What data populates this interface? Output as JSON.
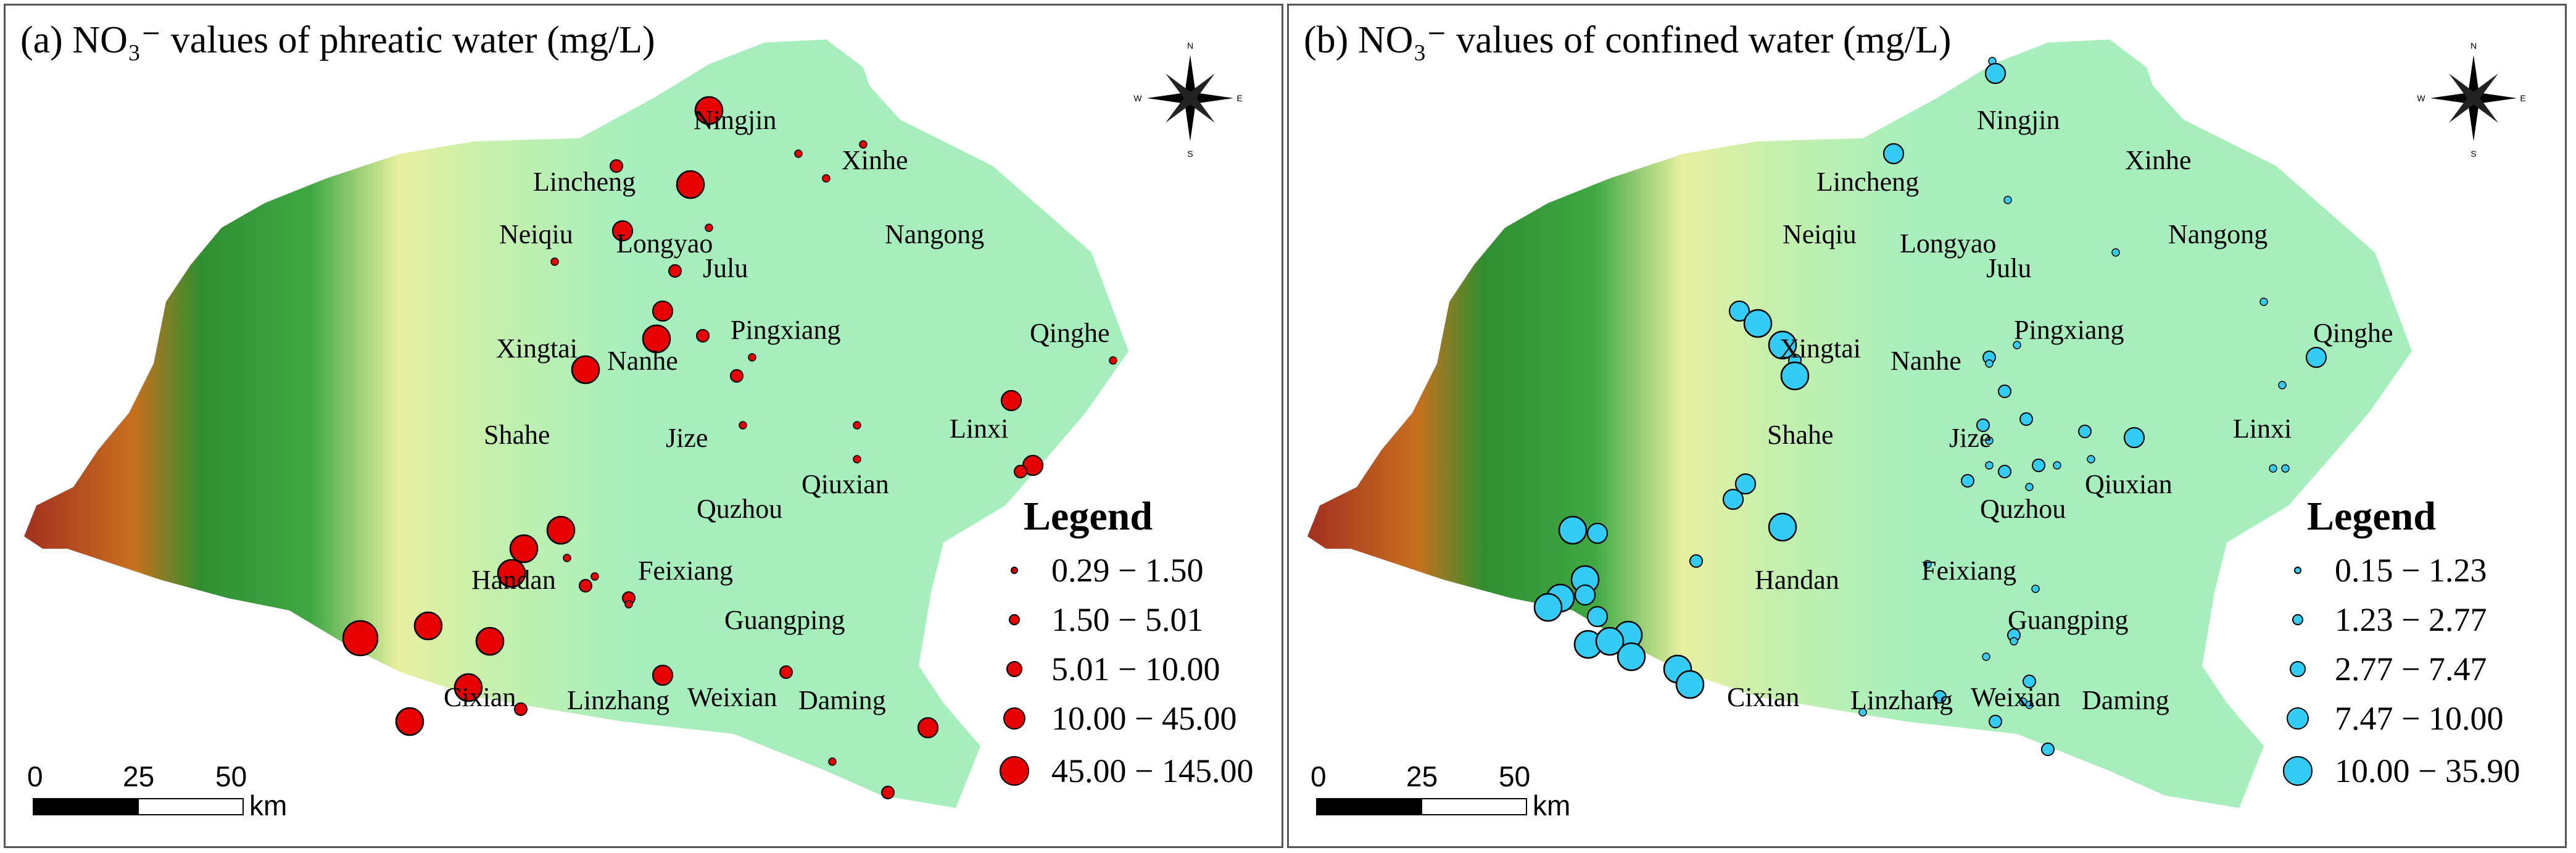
{
  "panels": [
    {
      "id": "a",
      "title": "(a) NO₃⁻ values of phreatic water (mg/L)",
      "marker_color": "#e60000",
      "legend_title": "Legend",
      "legend": [
        "0.29 − 1.50",
        "1.50 − 5.01",
        "5.01 − 10.00",
        "10.00 − 45.00",
        "45.00 − 145.00"
      ],
      "town_labels": [
        "Ningjin",
        "Xinhe",
        "Lincheng",
        "Neiqiu",
        "Longyao",
        "Nangong",
        "Julu",
        "Pingxiang",
        "Xingtai",
        "Nanhe",
        "Qinghe",
        "Shahe",
        "Jize",
        "Linxi",
        "Qiuxian",
        "Quzhou",
        "Handan",
        "Feixiang",
        "Guangping",
        "Cixian",
        "Linzhang",
        "Weixian",
        "Daming"
      ]
    },
    {
      "id": "b",
      "title": "(b) NO₃⁻ values of confined water (mg/L)",
      "marker_color": "#33ccf5",
      "legend_title": "Legend",
      "legend": [
        "0.15 − 1.23",
        "1.23 − 2.77",
        "2.77 − 7.47",
        "7.47 − 10.00",
        "10.00 − 35.90"
      ],
      "town_labels": [
        "Ningjin",
        "Xinhe",
        "Lincheng",
        "Neiqiu",
        "Longyao",
        "Nangong",
        "Julu",
        "Pingxiang",
        "Xingtai",
        "Nanhe",
        "Qinghe",
        "Shahe",
        "Jize",
        "Linxi",
        "Qiuxian",
        "Quzhou",
        "Handan",
        "Feixiang",
        "Guangping",
        "Cixian",
        "Linzhang",
        "Weixian",
        "Daming"
      ]
    }
  ],
  "scale_bar": {
    "ticks": [
      "0",
      "25",
      "50"
    ],
    "unit": "km"
  },
  "compass": {
    "n": "N",
    "s": "S",
    "e": "E",
    "w": "W"
  },
  "colors": {
    "plain": "#a6efbc",
    "mountain_high": "#a52a2a",
    "mountain_mid": "#2e8b2e",
    "foothill": "#f2f09a",
    "peak": "#ffffff"
  }
}
